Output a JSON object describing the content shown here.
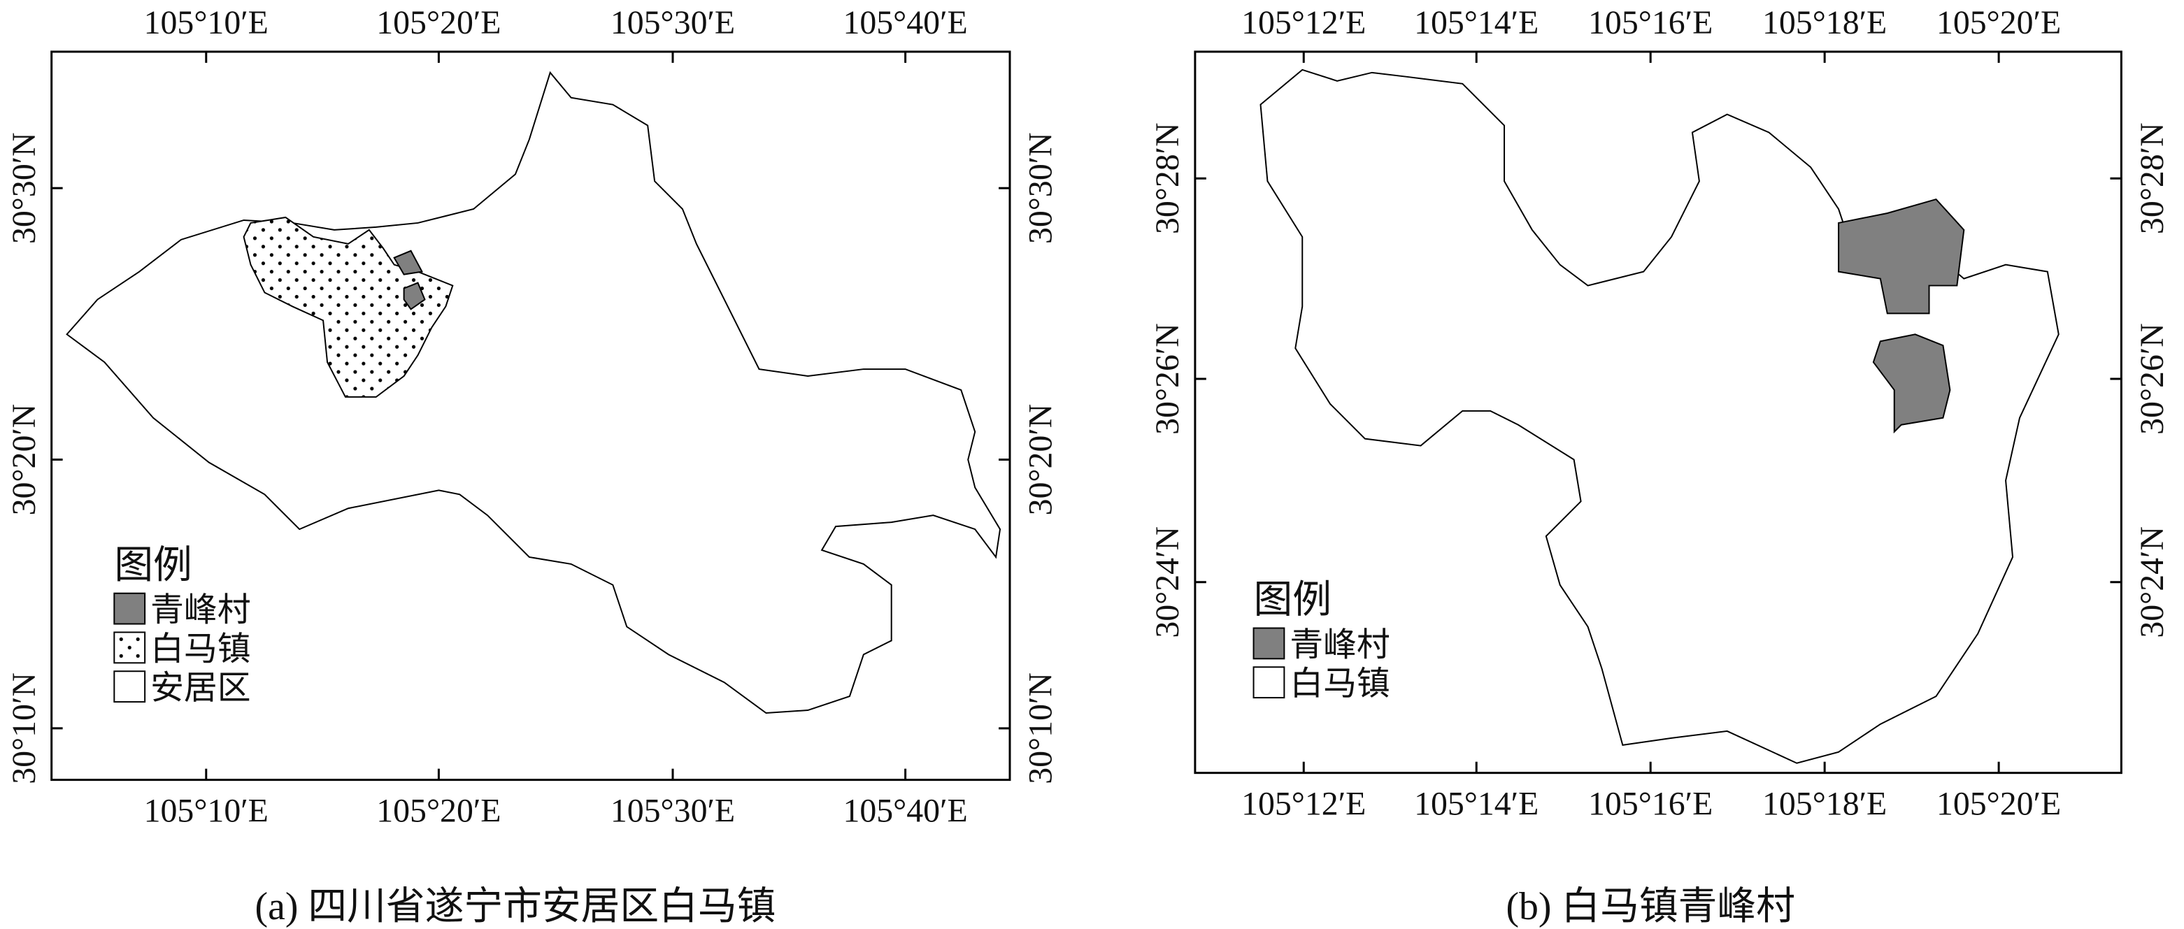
{
  "maps": [
    {
      "top_ticks": [
        "105°10′E",
        "105°20′E",
        "105°30′E",
        "105°40′E"
      ],
      "bottom_ticks": [
        "105°10′E",
        "105°20′E",
        "105°30′E",
        "105°40′E"
      ],
      "left_ticks": [
        "30°30′N",
        "30°20′N",
        "30°10′N"
      ],
      "right_ticks": [
        "30°30′N",
        "30°20′N",
        "30°10′N"
      ],
      "legend": {
        "title": "图例",
        "items": [
          "青峰村",
          "白马镇",
          "安居区"
        ]
      },
      "caption": "(a) 四川省遂宁市安居区白马镇"
    },
    {
      "top_ticks": [
        "105°12′E",
        "105°14′E",
        "105°16′E",
        "105°18′E",
        "105°20′E"
      ],
      "bottom_ticks": [
        "105°12′E",
        "105°14′E",
        "105°16′E",
        "105°18′E",
        "105°20′E"
      ],
      "left_ticks": [
        "30°28′N",
        "30°26′N",
        "30°24′N"
      ],
      "right_ticks": [
        "30°28′N",
        "30°26′N",
        "30°24′N"
      ],
      "legend": {
        "title": "图例",
        "items": [
          "青峰村",
          "白马镇"
        ]
      },
      "caption": "(b) 白马镇青峰村"
    }
  ]
}
